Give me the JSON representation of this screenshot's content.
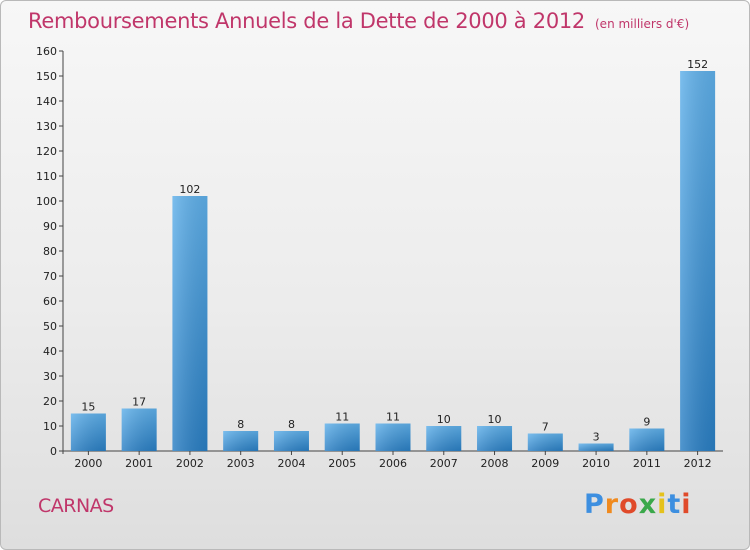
{
  "header": {
    "title": "Remboursements Annuels de la Dette de 2000 à 2012",
    "unit": "(en milliers d'€)"
  },
  "commune": "CARNAS",
  "logo": {
    "letters": [
      "P",
      "r",
      "o",
      "x",
      "i",
      "t",
      "i"
    ]
  },
  "colors": {
    "title": "#c0366a",
    "bar_light": "#5aaae6",
    "bar_dark": "#2a7fc4"
  },
  "chart_data": {
    "type": "bar",
    "title": "Remboursements Annuels de la Dette de 2000 à 2012",
    "subtitle": "(en milliers d'€)",
    "xlabel": "",
    "ylabel": "",
    "categories": [
      "2000",
      "2001",
      "2002",
      "2003",
      "2004",
      "2005",
      "2006",
      "2007",
      "2008",
      "2009",
      "2010",
      "2011",
      "2012"
    ],
    "values": [
      15,
      17,
      102,
      8,
      8,
      11,
      11,
      10,
      10,
      7,
      3,
      9,
      152
    ],
    "ylim": [
      0,
      160
    ],
    "yticks": [
      0,
      10,
      20,
      30,
      40,
      50,
      60,
      70,
      80,
      90,
      100,
      110,
      120,
      130,
      140,
      150,
      160
    ],
    "grid": false,
    "data_labels": true
  }
}
